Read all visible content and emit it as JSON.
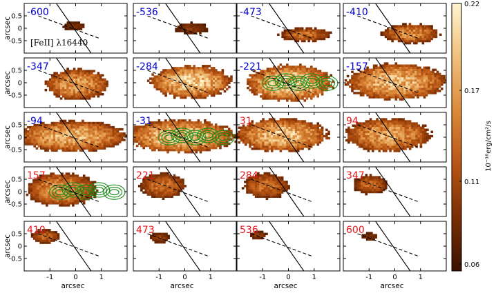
{
  "chart_data": {
    "type": "heatmap",
    "layout": {
      "rows": 5,
      "cols": 4
    },
    "line_label": "[FeII] λ16440",
    "xlabel": "arcsec",
    "ylabel": "arcsec",
    "xlim": [
      -2.0,
      2.0
    ],
    "ylim": [
      -1.0,
      1.0
    ],
    "xticks": [
      -1,
      0,
      1
    ],
    "xtick_labels": [
      "-1",
      "0",
      "1"
    ],
    "yticks": [
      0.5,
      0,
      -0.5
    ],
    "ytick_labels": [
      "0.5",
      "0",
      "-0.5"
    ],
    "colorbar": {
      "ticks": [
        0.22,
        0.17,
        0.11,
        0.06
      ],
      "tick_labels": [
        "0.22",
        "0.17",
        "0.11",
        "0.06"
      ],
      "label": "10⁻¹⁶erg/cm²/s",
      "colors": [
        "#3b1200",
        "#7a2e04",
        "#b85514",
        "#dc8a3a",
        "#f0c07c",
        "#fff4d0"
      ]
    },
    "velocity_colors": {
      "blue": "#0000cc",
      "red": "#e8141a"
    },
    "green_contour_color": "#1a8a1a",
    "panels": [
      {
        "velocity": "-600",
        "side": "blue",
        "intensity": 0.2,
        "center": [
          -0.1,
          0.05
        ],
        "extent": [
          0.4,
          0.15
        ],
        "contours": false
      },
      {
        "velocity": "-536",
        "side": "blue",
        "intensity": 0.25,
        "center": [
          0.2,
          -0.05
        ],
        "extent": [
          0.6,
          0.2
        ],
        "contours": false
      },
      {
        "velocity": "-473",
        "side": "blue",
        "intensity": 0.5,
        "center": [
          0.6,
          -0.3
        ],
        "extent": [
          0.9,
          0.25
        ],
        "contours": false
      },
      {
        "velocity": "-410",
        "side": "blue",
        "intensity": 0.6,
        "center": [
          0.6,
          -0.25
        ],
        "extent": [
          1.0,
          0.35
        ],
        "contours": false
      },
      {
        "velocity": "-347",
        "side": "blue",
        "intensity": 0.7,
        "center": [
          0.0,
          -0.1
        ],
        "extent": [
          1.1,
          0.55
        ],
        "contours": false
      },
      {
        "velocity": "-284",
        "side": "blue",
        "intensity": 0.85,
        "center": [
          0.2,
          0.0
        ],
        "extent": [
          1.4,
          0.6
        ],
        "contours": false
      },
      {
        "velocity": "-221",
        "side": "blue",
        "intensity": 0.9,
        "center": [
          0.0,
          -0.05
        ],
        "extent": [
          1.5,
          0.65
        ],
        "contours": true
      },
      {
        "velocity": "-157",
        "side": "blue",
        "intensity": 0.8,
        "center": [
          0.0,
          0.0
        ],
        "extent": [
          1.7,
          0.65
        ],
        "contours": false
      },
      {
        "velocity": "-94",
        "side": "blue",
        "intensity": 0.75,
        "center": [
          -0.2,
          0.0
        ],
        "extent": [
          1.9,
          0.55
        ],
        "contours": false
      },
      {
        "velocity": "-31",
        "side": "blue",
        "intensity": 0.85,
        "center": [
          -0.2,
          0.0
        ],
        "extent": [
          1.9,
          0.6
        ],
        "contours": true
      },
      {
        "velocity": "31",
        "side": "red",
        "intensity": 0.8,
        "center": [
          -0.3,
          0.05
        ],
        "extent": [
          1.6,
          0.6
        ],
        "contours": false
      },
      {
        "velocity": "94",
        "side": "red",
        "intensity": 0.7,
        "center": [
          -0.3,
          0.05
        ],
        "extent": [
          1.5,
          0.6
        ],
        "contours": false
      },
      {
        "velocity": "157",
        "side": "red",
        "intensity": 0.65,
        "center": [
          -0.6,
          0.05
        ],
        "extent": [
          1.2,
          0.6
        ],
        "contours": true
      },
      {
        "velocity": "221",
        "side": "red",
        "intensity": 0.5,
        "center": [
          -0.9,
          0.2
        ],
        "extent": [
          0.8,
          0.45
        ],
        "contours": false
      },
      {
        "velocity": "284",
        "side": "red",
        "intensity": 0.5,
        "center": [
          -0.9,
          0.2
        ],
        "extent": [
          0.8,
          0.45
        ],
        "contours": false
      },
      {
        "velocity": "347",
        "side": "red",
        "intensity": 0.45,
        "center": [
          -1.0,
          0.25
        ],
        "extent": [
          0.6,
          0.35
        ],
        "contours": false
      },
      {
        "velocity": "410",
        "side": "red",
        "intensity": 0.45,
        "center": [
          -1.2,
          0.35
        ],
        "extent": [
          0.5,
          0.25
        ],
        "contours": false
      },
      {
        "velocity": "473",
        "side": "red",
        "intensity": 0.3,
        "center": [
          -1.0,
          0.3
        ],
        "extent": [
          0.35,
          0.2
        ],
        "contours": false
      },
      {
        "velocity": "536",
        "side": "red",
        "intensity": 0.25,
        "center": [
          -1.2,
          0.4
        ],
        "extent": [
          0.3,
          0.15
        ],
        "contours": false
      },
      {
        "velocity": "600",
        "side": "red",
        "intensity": 0.2,
        "center": [
          -1.0,
          0.35
        ],
        "extent": [
          0.3,
          0.15
        ],
        "contours": false
      }
    ]
  }
}
